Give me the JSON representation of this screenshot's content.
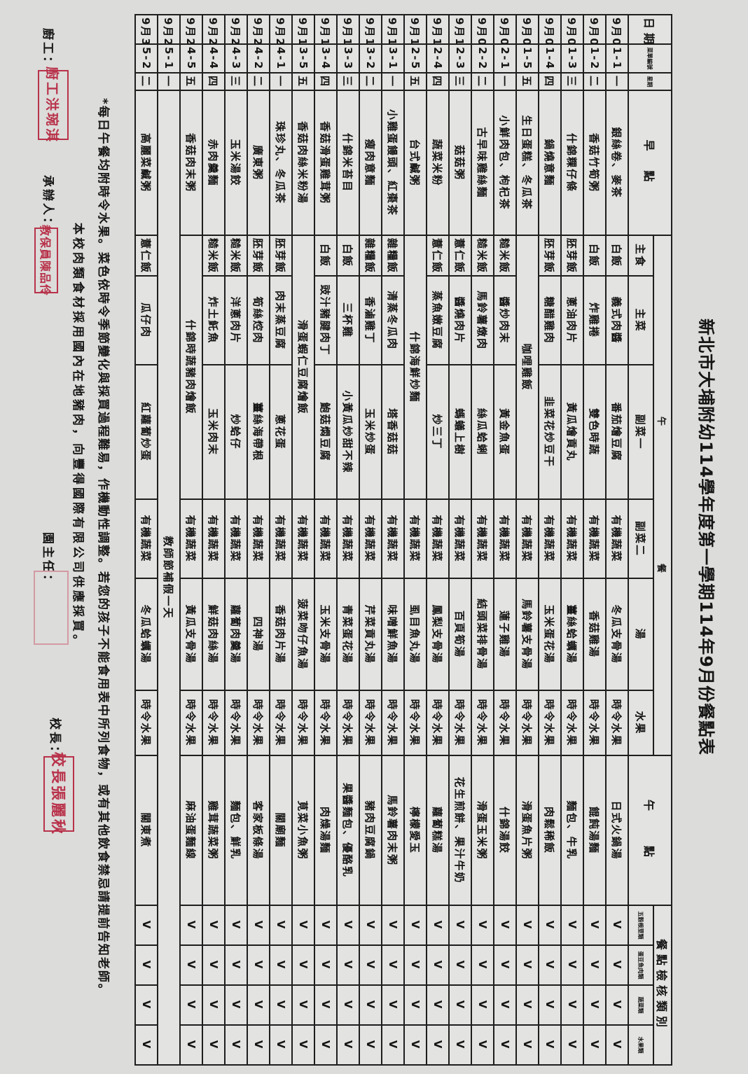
{
  "title": "新北市大埔附幼114學年度第一學期114年9月份餐點表",
  "header": {
    "date": "日期",
    "code": "菜單編號",
    "weekday": "星期",
    "breakfast": "早　點",
    "lunch": "午　　　　　　　　　　　　　餐",
    "snack": "午　　點",
    "check": "餐點檢核類別",
    "lunch_cols": [
      "主食",
      "主菜",
      "副菜一",
      "副菜二",
      "湯",
      "水果"
    ],
    "check_cols": [
      "五穀根莖類",
      "蛋豆魚肉類",
      "蔬菜類",
      "水果類"
    ]
  },
  "rows": [
    {
      "date": "9月01日",
      "code": "1-1",
      "weekday": "一",
      "breakfast": "銀絲卷、麥茶",
      "staple": "白飯",
      "main": "義式肉醬",
      "side1": "番茄燴豆腐",
      "side2": "有機蔬菜",
      "soup": "冬瓜支骨湯",
      "fruit": "時令水果",
      "snack": "日式火鍋湯",
      "checks": [
        "V",
        "V",
        "V",
        "V"
      ]
    },
    {
      "date": "9月02日",
      "code": "1-2",
      "weekday": "二",
      "breakfast": "香菇竹筍粥",
      "staple": "白飯",
      "main": "炸雞捲",
      "side1": "雙色時蔬",
      "side2": "有機蔬菜",
      "soup": "香菇雞湯",
      "fruit": "時令水果",
      "snack": "餛飩湯麵",
      "checks": [
        "V",
        "V",
        "V",
        "V"
      ]
    },
    {
      "date": "9月03日",
      "code": "1-3",
      "weekday": "三",
      "breakfast": "什錦粿仔條",
      "staple": "胚芽飯",
      "main": "蔥油肉片",
      "side1": "黃瓜燴貢丸",
      "side2": "有機蔬菜",
      "soup": "薑絲蛤蠣湯",
      "fruit": "時令水果",
      "snack": "麵包、牛乳",
      "checks": [
        "V",
        "V",
        "V",
        "V"
      ]
    },
    {
      "date": "9月04日",
      "code": "1-4",
      "weekday": "四",
      "breakfast": "鍋燒意麵",
      "staple": "胚芽飯",
      "main": "糖醋雞肉",
      "side1": "韭菜花炒豆干",
      "side2": "有機蔬菜",
      "soup": "玉米蛋花湯",
      "fruit": "時令水果",
      "snack": "肉鬆稀飯",
      "checks": [
        "V",
        "V",
        "V",
        "V"
      ]
    },
    {
      "date": "9月05日",
      "code": "1-5",
      "weekday": "五",
      "breakfast": "生日蛋糕、冬瓜茶",
      "combo": "咖哩雞飯",
      "side2": "有機蔬菜",
      "soup": "馬鈴薯支骨湯",
      "fruit": "時令水果",
      "snack": "滑蛋魚片粥",
      "checks": [
        "V",
        "V",
        "V",
        "V"
      ]
    },
    {
      "date": "9月08日",
      "code": "2-1",
      "weekday": "一",
      "breakfast": "小鮮肉包、枸杞茶",
      "staple": "糙米飯",
      "main": "醬炒肉末",
      "side1": "黃金魚蛋",
      "side2": "有機蔬菜",
      "soup": "蓮子雞湯",
      "fruit": "時令水果",
      "snack": "什錦湯餃",
      "checks": [
        "V",
        "V",
        "V",
        "V"
      ]
    },
    {
      "date": "9月09日",
      "code": "2-2",
      "weekday": "二",
      "breakfast": "古早味雞絲麵",
      "staple": "糙米飯",
      "main": "馬鈴薯燉肉",
      "side1": "絲瓜蛤蜊",
      "side2": "有機蔬菜",
      "soup": "結頭菜排骨湯",
      "fruit": "時令水果",
      "snack": "滑蛋玉米粥",
      "checks": [
        "V",
        "V",
        "V",
        "V"
      ]
    },
    {
      "date": "9月10日",
      "code": "2-3",
      "weekday": "三",
      "breakfast": "菇菇粥",
      "staple": "薏仁飯",
      "main": "醬燒肉片",
      "side1": "螞蟻上樹",
      "side2": "有機蔬菜",
      "soup": "百頁筍湯",
      "fruit": "時令水果",
      "snack": "花生煎餅、果汁牛奶",
      "checks": [
        "V",
        "V",
        "V",
        "V"
      ]
    },
    {
      "date": "9月11日",
      "code": "2-4",
      "weekday": "四",
      "breakfast": "蔬菜米粉",
      "staple": "薏仁飯",
      "main": "蒸魚嫩豆腐",
      "side1": "炒三丁",
      "side2": "有機蔬菜",
      "soup": "鳳梨支骨湯",
      "fruit": "時令水果",
      "snack": "蘿蔔糕湯",
      "checks": [
        "V",
        "V",
        "V",
        "V"
      ]
    },
    {
      "date": "9月12日",
      "code": "2-5",
      "weekday": "五",
      "breakfast": "台式鹹粥",
      "combo": "什錦海鮮炒麵",
      "side2": "有機蔬菜",
      "soup": "虱目魚丸湯",
      "fruit": "時令水果",
      "snack": "檸檬愛玉",
      "checks": [
        "V",
        "V",
        "V",
        "V"
      ]
    },
    {
      "date": "9月15日",
      "code": "3-1",
      "weekday": "一",
      "breakfast": "小雞蛋饅頭、紅棗茶",
      "staple": "雜糧飯",
      "main": "清蒸冬瓜肉",
      "side1": "塔香菇菇",
      "side2": "有機蔬菜",
      "soup": "味噌鮮魚湯",
      "fruit": "時令水果",
      "snack": "馬鈴薯肉末粥",
      "checks": [
        "V",
        "V",
        "V",
        "V"
      ]
    },
    {
      "date": "9月16日",
      "code": "3-2",
      "weekday": "二",
      "breakfast": "瘦肉意麵",
      "staple": "雜糧飯",
      "main": "香滷雞丁",
      "side1": "玉米炒蛋",
      "side2": "有機蔬菜",
      "soup": "芹菜貢丸湯",
      "fruit": "時令水果",
      "snack": "豬肉豆腐鍋",
      "checks": [
        "V",
        "V",
        "V",
        "V"
      ]
    },
    {
      "date": "9月17日",
      "code": "3-3",
      "weekday": "三",
      "breakfast": "什錦米苔目",
      "staple": "白飯",
      "main": "三杯雞",
      "side1": "小黃瓜炒甜不辣",
      "side2": "有機蔬菜",
      "soup": "青菜蛋花湯",
      "fruit": "時令水果",
      "snack": "果醬麵包、優酪乳",
      "checks": [
        "V",
        "V",
        "V",
        "V"
      ]
    },
    {
      "date": "9月18日",
      "code": "3-4",
      "weekday": "四",
      "breakfast": "香菇滑蛋雞茸粥",
      "staple": "白飯",
      "main": "豉汁豬腱肉丁",
      "side1": "鮑菇燜豆腐",
      "side2": "有機蔬菜",
      "soup": "玉米支骨湯",
      "fruit": "時令水果",
      "snack": "肉燥湯麵",
      "checks": [
        "V",
        "V",
        "V",
        "V"
      ]
    },
    {
      "date": "9月19日",
      "code": "3-5",
      "weekday": "五",
      "breakfast": "香菇肉絲米粉湯",
      "combo": "滑蛋蝦仁豆腐燴飯",
      "side2": "有機蔬菜",
      "soup": "菠菜吻仔魚湯",
      "fruit": "時令水果",
      "snack": "莧菜小魚粥",
      "checks": [
        "V",
        "V",
        "V",
        "V"
      ]
    },
    {
      "date": "9月22日",
      "code": "4-1",
      "weekday": "一",
      "breakfast": "珠珍丸、冬瓜茶",
      "staple": "胚芽飯",
      "main": "肉末蒸豆腐",
      "side1": "蔥花蛋",
      "side2": "有機蔬菜",
      "soup": "香菇肉片湯",
      "fruit": "時令水果",
      "snack": "關廟麵",
      "checks": [
        "V",
        "V",
        "V",
        "V"
      ]
    },
    {
      "date": "9月23日",
      "code": "4-2",
      "weekday": "二",
      "breakfast": "廣東粥",
      "staple": "胚芽飯",
      "main": "筍絲焢肉",
      "side1": "薑絲海帶根",
      "side2": "有機蔬菜",
      "soup": "四神湯",
      "fruit": "時令水果",
      "snack": "客家板條湯",
      "checks": [
        "V",
        "V",
        "V",
        "V"
      ]
    },
    {
      "date": "9月24日",
      "code": "4-3",
      "weekday": "三",
      "breakfast": "玉米湯餃",
      "staple": "糙米飯",
      "main": "洋蔥肉片",
      "side1": "炒蛤仔",
      "side2": "有機蔬菜",
      "soup": "蘿蔔肉羹湯",
      "fruit": "時令水果",
      "snack": "麵包、鮮乳",
      "checks": [
        "V",
        "V",
        "V",
        "V"
      ]
    },
    {
      "date": "9月25日",
      "code": "4-4",
      "weekday": "四",
      "breakfast": "赤肉羹麵",
      "staple": "糙米飯",
      "main": "炸土魠魚",
      "side1": "玉米肉末",
      "side2": "有機蔬菜",
      "soup": "鮮菇肉絲湯",
      "fruit": "時令水果",
      "snack": "雞茸蔬菜粥",
      "checks": [
        "V",
        "V",
        "V",
        "V"
      ]
    },
    {
      "date": "9月26日",
      "code": "4-5",
      "weekday": "五",
      "breakfast": "香菇肉末粥",
      "combo": "什錦時蔬豬肉燴飯",
      "side2": "有機蔬菜",
      "soup": "黃瓜支骨湯",
      "fruit": "時令水果",
      "snack": "麻油蛋麵線",
      "checks": [
        "V",
        "V",
        "V",
        "V"
      ]
    },
    {
      "date": "9月29日",
      "code": "5-1",
      "weekday": "一",
      "holiday": "教師節補假一天"
    },
    {
      "date": "9月30日",
      "code": "5-2",
      "weekday": "二",
      "breakfast": "高麗菜鹹粥",
      "staple": "薏仁飯",
      "main": "瓜仔肉",
      "side1": "紅蘿蔔炒蛋",
      "side2": "有機蔬菜",
      "soup": "冬瓜蛤蠣湯",
      "fruit": "時令水果",
      "snack": "關東煮",
      "checks": [
        "V",
        "V",
        "V",
        "V"
      ]
    }
  ],
  "notes": {
    "line1": "*每日午餐均附時令水果。菜色依時令季節變化與採買過程難易，作機動性調整。若您的孩子不能食用表中所列食物，或有其他飲食禁忌請提前告知老師。",
    "line2": "本校肉類食材採用國內在地豬肉，向豐得國際有限公司供應採買。"
  },
  "signatures": {
    "cook_label": "廚工：",
    "cook_stamp": "廚工洪琬淇",
    "handler_label": "承辦人：",
    "handler_stamp": "教保員陳品伶",
    "director_label": "園主任：",
    "principal_label": "校長：",
    "principal_stamp": "校長張麗秋"
  },
  "colors": {
    "stamp": "#b8324a",
    "grid": "#1e1e1e",
    "cell": "#e3e3e1"
  }
}
